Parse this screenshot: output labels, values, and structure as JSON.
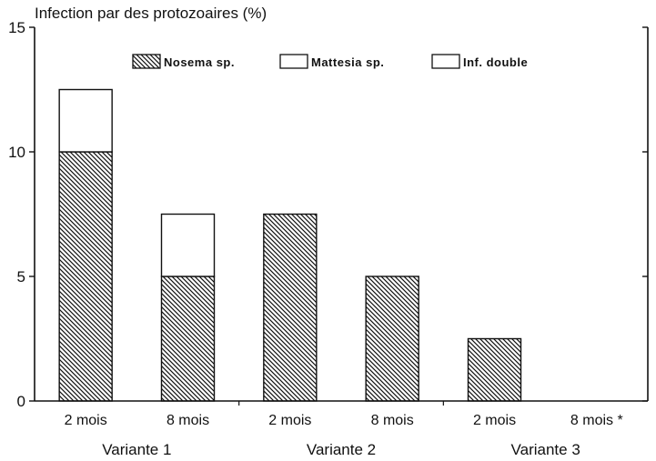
{
  "chart_data": {
    "type": "bar",
    "stacked": true,
    "ylabel": "Infection par des protozoaires (%)",
    "ylim": [
      0,
      15
    ],
    "yticks": [
      0,
      5,
      10,
      15
    ],
    "categories": [
      "2 mois",
      "8 mois",
      "2 mois",
      "8 mois",
      "2 mois",
      "8 mois *"
    ],
    "groups": [
      {
        "label": "Variante 1",
        "span": [
          0,
          1
        ]
      },
      {
        "label": "Variante 2",
        "span": [
          2,
          3
        ]
      },
      {
        "label": "Variante 3",
        "span": [
          4,
          5
        ]
      }
    ],
    "series": [
      {
        "name": "Nosema sp.",
        "pattern": "hatch",
        "values": [
          10,
          5,
          7.5,
          5,
          2.5,
          0
        ]
      },
      {
        "name": "Mattesia sp.",
        "pattern": "white",
        "values": [
          0,
          0,
          0,
          0,
          0,
          0
        ]
      },
      {
        "name": "Inf. double",
        "pattern": "white",
        "values": [
          2.5,
          2.5,
          0,
          0,
          0,
          0
        ]
      }
    ],
    "legend": {
      "position": "top-right"
    },
    "grid": false,
    "colors": {
      "ink": "#111111",
      "background": "#ffffff"
    }
  }
}
